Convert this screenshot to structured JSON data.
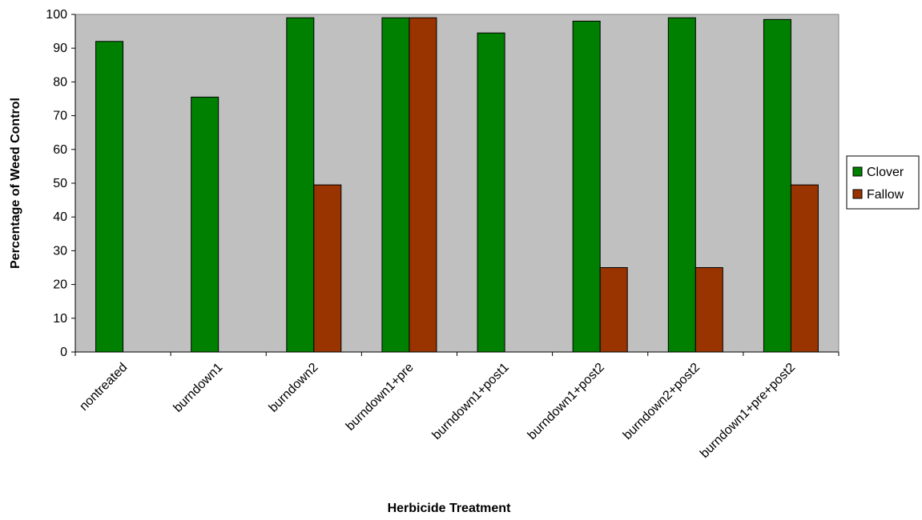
{
  "chart_data": {
    "type": "bar",
    "title": "",
    "xlabel": "Herbicide Treatment",
    "ylabel": "Percentage of Weed Control",
    "ylim": [
      0,
      100
    ],
    "yticks": [
      0,
      10,
      20,
      30,
      40,
      50,
      60,
      70,
      80,
      90,
      100
    ],
    "grid": false,
    "legend_position": "right",
    "categories": [
      "nontreated",
      "burndown1",
      "burndown2",
      "burndown1+pre",
      "burndown1+post1",
      "burndown1+post2",
      "burndown2+post2",
      "burndown1+pre+post2"
    ],
    "series": [
      {
        "name": "Clover",
        "color": "#008000",
        "values": [
          92,
          75.5,
          99,
          99,
          94.5,
          98,
          99,
          98.5
        ]
      },
      {
        "name": "Fallow",
        "color": "#993300",
        "values": [
          0,
          0,
          49.5,
          99,
          0,
          25,
          25,
          49.5
        ]
      }
    ],
    "plot_background": "#c0c0c0"
  }
}
